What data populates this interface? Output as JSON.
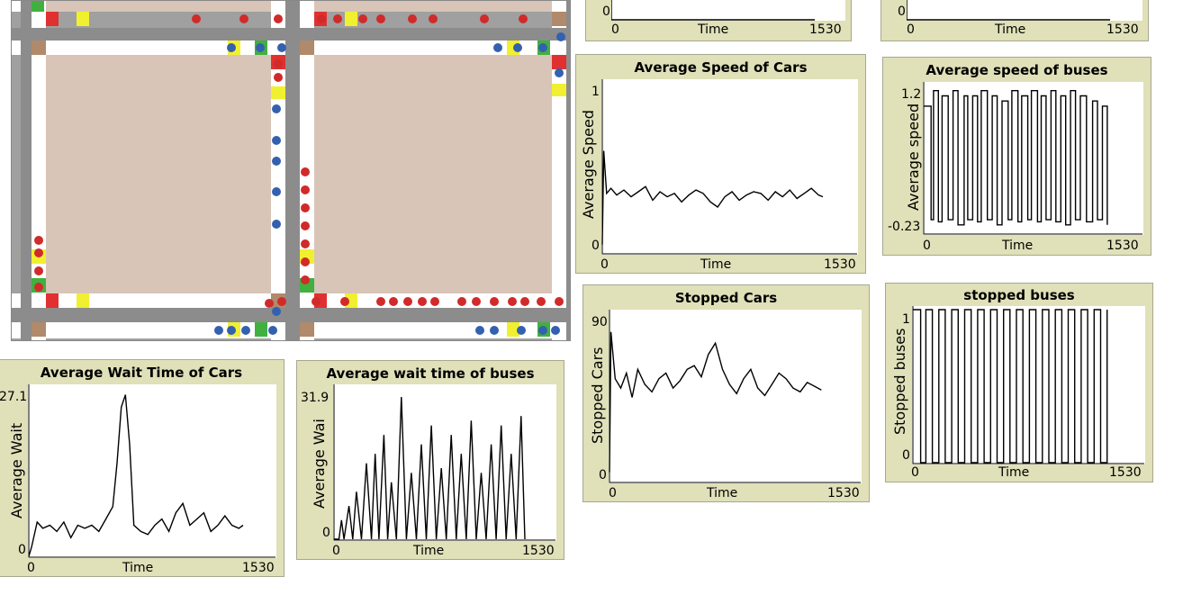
{
  "plots": [
    {
      "id": "top-left-cut",
      "title": "",
      "ylabel": "",
      "ymin": "0",
      "xmin": "0",
      "xmax": "1530",
      "xlabel": "Time"
    },
    {
      "id": "top-right-cut",
      "title": "",
      "ylabel": "",
      "ymin": "0",
      "xmin": "0",
      "xmax": "1530",
      "xlabel": "Time"
    },
    {
      "id": "avg-speed-cars",
      "title": "Average Speed of Cars",
      "ylabel": "Average Speed",
      "ymin": "0",
      "ymax": "1",
      "xmin": "0",
      "xmax": "1530",
      "xlabel": "Time"
    },
    {
      "id": "avg-speed-buses",
      "title": "Average speed of buses",
      "ylabel": "Average speed",
      "ymin": "-0.23",
      "ymax": "1.2",
      "xmin": "0",
      "xmax": "1530",
      "xlabel": "Time"
    },
    {
      "id": "stopped-cars",
      "title": "Stopped Cars",
      "ylabel": "Stopped Cars",
      "ymin": "0",
      "ymax": "90",
      "xmin": "0",
      "xmax": "1530",
      "xlabel": "Time"
    },
    {
      "id": "stopped-buses",
      "title": "stopped buses",
      "ylabel": "Stopped buses",
      "ymin": "0",
      "ymax": "1",
      "xmin": "0",
      "xmax": "1530",
      "xlabel": "Time"
    },
    {
      "id": "avg-wait-cars",
      "title": "Average Wait Time of Cars",
      "ylabel": "Average Wait",
      "ymin": "0",
      "ymax": "27.1",
      "xmin": "0",
      "xmax": "1530",
      "xlabel": "Time"
    },
    {
      "id": "avg-wait-buses",
      "title": "Average wait time of buses",
      "ylabel": "Average Wai",
      "ymin": "0",
      "ymax": "31.9",
      "xmin": "0",
      "xmax": "1530",
      "xlabel": "Time"
    }
  ],
  "chart_data": [
    {
      "type": "line",
      "title": "Average Speed of Cars",
      "xlabel": "Time",
      "ylabel": "Average Speed",
      "xlim": [
        0,
        1530
      ],
      "ylim": [
        0,
        1
      ],
      "x": [
        0,
        10,
        30,
        60,
        100,
        150,
        200,
        250,
        300,
        350,
        400,
        450,
        500,
        550,
        600,
        650,
        700,
        750,
        800,
        850,
        900,
        950,
        1000,
        1050,
        1100,
        1150,
        1200,
        1250,
        1300,
        1350,
        1400,
        1450,
        1500,
        1530
      ],
      "y": [
        0.05,
        0.6,
        0.35,
        0.38,
        0.34,
        0.37,
        0.33,
        0.36,
        0.39,
        0.31,
        0.36,
        0.33,
        0.35,
        0.3,
        0.34,
        0.37,
        0.35,
        0.3,
        0.27,
        0.33,
        0.36,
        0.31,
        0.34,
        0.36,
        0.35,
        0.31,
        0.36,
        0.33,
        0.37,
        0.32,
        0.35,
        0.38,
        0.34,
        0.33
      ]
    },
    {
      "type": "line",
      "title": "Average speed of buses",
      "xlabel": "Time",
      "ylabel": "Average speed",
      "xlim": [
        0,
        1530
      ],
      "ylim": [
        -0.23,
        1.2
      ],
      "x": [
        0,
        60,
        80,
        120,
        150,
        200,
        240,
        280,
        330,
        360,
        400,
        440,
        470,
        520,
        560,
        600,
        640,
        690,
        720,
        770,
        800,
        850,
        880,
        930,
        960,
        1000,
        1040,
        1080,
        1120,
        1160,
        1200,
        1240,
        1280,
        1330,
        1380,
        1420,
        1460,
        1500
      ],
      "y": [
        1.0,
        -0.1,
        1.15,
        -0.12,
        1.1,
        -0.1,
        1.15,
        -0.15,
        1.1,
        -0.1,
        1.1,
        -0.12,
        1.15,
        -0.1,
        1.1,
        -0.15,
        1.05,
        -0.1,
        1.15,
        -0.12,
        1.1,
        -0.1,
        1.15,
        -0.12,
        1.1,
        -0.1,
        1.15,
        -0.12,
        1.1,
        -0.15,
        1.15,
        -0.1,
        1.1,
        -0.12,
        1.05,
        -0.1,
        1.0,
        -0.15
      ]
    },
    {
      "type": "line",
      "title": "Stopped Cars",
      "xlabel": "Time",
      "ylabel": "Stopped Cars",
      "xlim": [
        0,
        1530
      ],
      "ylim": [
        0,
        90
      ],
      "x": [
        0,
        10,
        40,
        80,
        120,
        160,
        200,
        250,
        300,
        350,
        400,
        450,
        500,
        550,
        600,
        650,
        700,
        750,
        800,
        850,
        900,
        950,
        1000,
        1050,
        1100,
        1150,
        1200,
        1250,
        1300,
        1350,
        1400,
        1450,
        1500
      ],
      "y": [
        5,
        80,
        55,
        50,
        58,
        45,
        60,
        52,
        48,
        55,
        58,
        50,
        54,
        60,
        62,
        56,
        68,
        74,
        60,
        52,
        47,
        55,
        60,
        50,
        46,
        52,
        58,
        55,
        50,
        48,
        53,
        51,
        49
      ]
    },
    {
      "type": "line",
      "title": "stopped buses",
      "xlabel": "Time",
      "ylabel": "Stopped buses",
      "xlim": [
        0,
        1530
      ],
      "ylim": [
        0,
        1
      ],
      "x": [
        0,
        60,
        100,
        150,
        200,
        250,
        300,
        350,
        400,
        450,
        500,
        550,
        600,
        650,
        700,
        750,
        800,
        850,
        900,
        950,
        1000,
        1050,
        1100,
        1150,
        1200,
        1250,
        1300,
        1350,
        1400,
        1450,
        1500
      ],
      "y": [
        1,
        0,
        1,
        0,
        1,
        0,
        1,
        0,
        1,
        0,
        1,
        0,
        1,
        0,
        1,
        0,
        1,
        0,
        1,
        0,
        1,
        0,
        1,
        0,
        1,
        0,
        1,
        0,
        1,
        0,
        1
      ]
    },
    {
      "type": "line",
      "title": "Average Wait Time of Cars",
      "xlabel": "Time",
      "ylabel": "Average Wait",
      "xlim": [
        0,
        1530
      ],
      "ylim": [
        0,
        27.1
      ],
      "x": [
        0,
        20,
        60,
        100,
        150,
        200,
        250,
        300,
        350,
        400,
        450,
        500,
        550,
        600,
        630,
        660,
        690,
        720,
        750,
        800,
        850,
        900,
        950,
        1000,
        1050,
        1100,
        1150,
        1200,
        1250,
        1300,
        1350,
        1400,
        1450,
        1500,
        1530
      ],
      "y": [
        0,
        1.5,
        5.5,
        4.5,
        5,
        4,
        5.5,
        3,
        5,
        4.5,
        5,
        4,
        6,
        8,
        15,
        24,
        26,
        18,
        5,
        4,
        3.5,
        5,
        6,
        4,
        7,
        8.5,
        5,
        6,
        7,
        4,
        5,
        6.5,
        5,
        4.5,
        5
      ]
    },
    {
      "type": "line",
      "title": "Average wait time of buses",
      "xlabel": "Time",
      "ylabel": "Average Wai",
      "xlim": [
        0,
        1530
      ],
      "ylim": [
        0,
        31.9
      ],
      "x": [
        0,
        40,
        60,
        80,
        120,
        150,
        180,
        220,
        260,
        300,
        330,
        360,
        400,
        430,
        460,
        500,
        540,
        580,
        620,
        660,
        700,
        740,
        780,
        820,
        860,
        900,
        940,
        980,
        1020,
        1060,
        1100,
        1140,
        1180,
        1220,
        1260,
        1300,
        1340,
        1380,
        1420,
        1460,
        1500,
        1530
      ],
      "y": [
        0,
        0,
        4,
        0,
        7,
        0,
        10,
        0,
        16,
        0,
        18,
        0,
        22,
        0,
        12,
        0,
        30,
        0,
        14,
        0,
        20,
        0,
        24,
        0,
        15,
        0,
        22,
        0,
        18,
        0,
        25,
        0,
        14,
        0,
        20,
        0,
        24,
        0,
        18,
        0,
        26,
        0
      ]
    }
  ],
  "world": {
    "background": "#a0a0a0",
    "patch_color": "#d8c5b8",
    "road_color": "#ffffff",
    "car_color": "#d12a2a",
    "bus_color": "#3460b0"
  }
}
